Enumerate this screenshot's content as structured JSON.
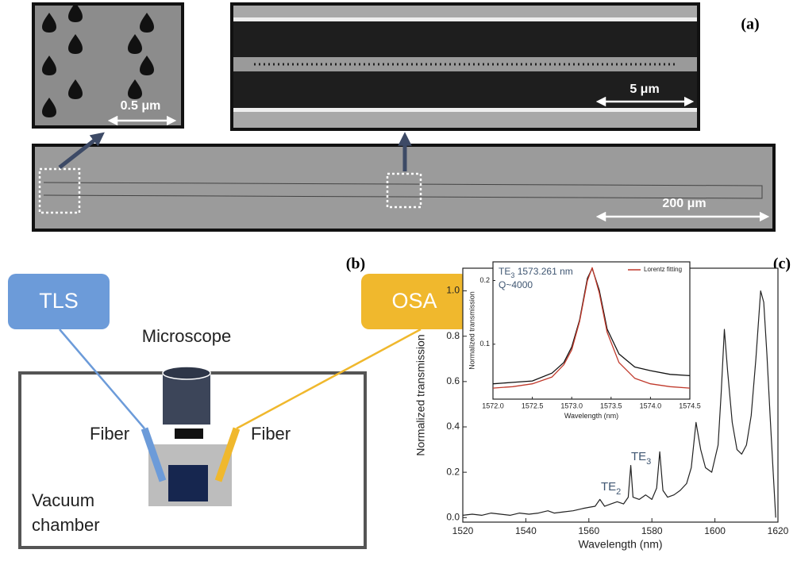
{
  "panel_a": {
    "label": "(a)",
    "scale_bars": [
      "0.5 μm",
      "5 μm",
      "200 μm"
    ]
  },
  "panel_b": {
    "label": "(b)",
    "tls": "TLS",
    "osa": "OSA",
    "microscope": "Microscope",
    "fiber_left": "Fiber",
    "fiber_right": "Fiber",
    "chamber": [
      "Vacuum",
      "chamber"
    ]
  },
  "panel_c": {
    "label": "(c)"
  },
  "chart_data": [
    {
      "type": "line",
      "xlabel": "Wavelength (nm)",
      "ylabel": "Normalized transmission",
      "x": [
        1520,
        1523,
        1526,
        1529,
        1532,
        1535,
        1538,
        1541,
        1544,
        1547,
        1549,
        1552,
        1555,
        1558,
        1560,
        1562,
        1563.5,
        1565,
        1567,
        1569,
        1571,
        1572.5,
        1573.3,
        1574,
        1576,
        1578,
        1580,
        1581.5,
        1582.5,
        1583.5,
        1585,
        1587,
        1589,
        1591,
        1592.5,
        1594,
        1595.5,
        1597,
        1599,
        1601,
        1602,
        1603,
        1604,
        1605.5,
        1607,
        1608.5,
        1610,
        1611.5,
        1613,
        1614.5,
        1615.5,
        1616.5,
        1617.5,
        1618.5,
        1619.3
      ],
      "series": [
        {
          "color": "#222222",
          "values": [
            0.01,
            0.015,
            0.01,
            0.02,
            0.015,
            0.01,
            0.02,
            0.015,
            0.02,
            0.03,
            0.02,
            0.025,
            0.03,
            0.04,
            0.045,
            0.05,
            0.08,
            0.05,
            0.06,
            0.07,
            0.06,
            0.09,
            0.23,
            0.09,
            0.08,
            0.1,
            0.08,
            0.13,
            0.29,
            0.12,
            0.09,
            0.1,
            0.12,
            0.15,
            0.22,
            0.42,
            0.3,
            0.22,
            0.2,
            0.32,
            0.55,
            0.83,
            0.65,
            0.42,
            0.3,
            0.28,
            0.32,
            0.45,
            0.7,
            1.0,
            0.95,
            0.72,
            0.45,
            0.2,
            0
          ]
        }
      ],
      "xlim": [
        1520,
        1620
      ],
      "xticks": [
        1520,
        1540,
        1560,
        1580,
        1600,
        1620
      ],
      "ylim": [
        -0.02,
        1.1
      ],
      "yticks": [
        {
          "value": 0,
          "label": "0.0"
        },
        0.2,
        0.4,
        0.6,
        0.8,
        {
          "value": 1,
          "label": "1.0"
        }
      ],
      "annotations": [
        {
          "text": "TE",
          "sub": "2"
        },
        {
          "text": "TE",
          "sub": "3"
        }
      ]
    },
    {
      "type": "line",
      "xlabel": "Wavelength (nm)",
      "ylabel": "Normalized transmission",
      "x": [
        1572.0,
        1572.25,
        1572.5,
        1572.75,
        1572.9,
        1573.0,
        1573.1,
        1573.2,
        1573.26,
        1573.35,
        1573.45,
        1573.6,
        1573.8,
        1574.0,
        1574.25,
        1574.5
      ],
      "series": [
        {
          "color": "#111111",
          "values": [
            0.065,
            0.066,
            0.067,
            0.073,
            0.082,
            0.097,
            0.13,
            0.205,
            0.228,
            0.18,
            0.118,
            0.09,
            0.078,
            0.075,
            0.072,
            0.071
          ]
        },
        {
          "name": "Lorentz fitting",
          "color": "#c0392b",
          "values": [
            0.062,
            0.063,
            0.065,
            0.07,
            0.08,
            0.094,
            0.128,
            0.2,
            0.23,
            0.175,
            0.114,
            0.082,
            0.069,
            0.065,
            0.063,
            0.062
          ]
        }
      ],
      "xlim": [
        1572.0,
        1574.5
      ],
      "xticks": [
        {
          "value": 1572,
          "label": "1572.0"
        },
        1572.5,
        {
          "value": 1573,
          "label": "1573.0"
        },
        1573.5,
        {
          "value": 1574,
          "label": "1574.0"
        },
        1574.5
      ],
      "ylim": [
        0.055,
        0.245
      ],
      "yticks": [
        0.1,
        0.2
      ],
      "log_y": true,
      "annotations": [
        {
          "text": "TE",
          "sub": "3",
          "rest": " 1573.261 nm"
        },
        {
          "text": "Q~4000"
        }
      ]
    }
  ]
}
